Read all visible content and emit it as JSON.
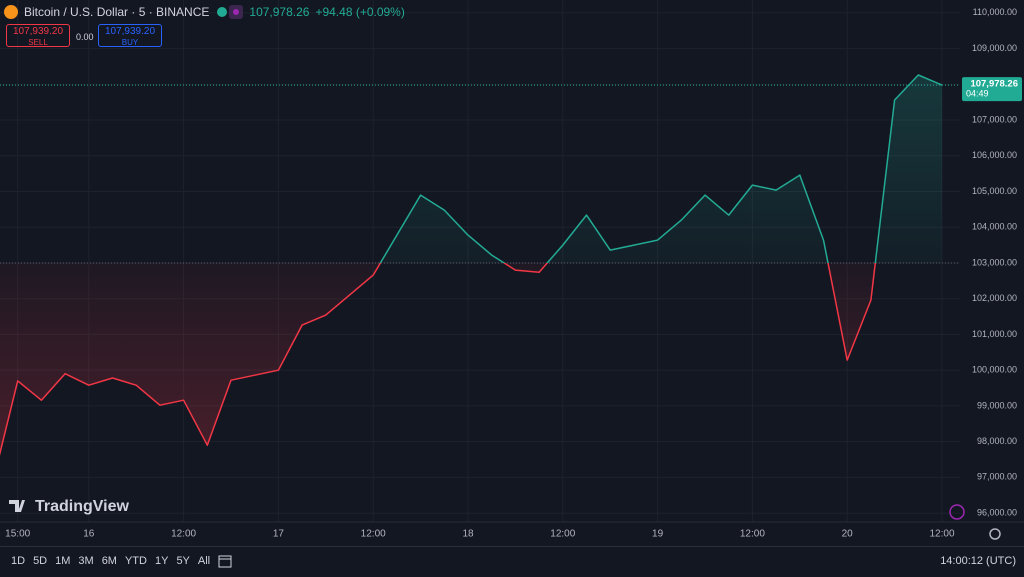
{
  "ui": {
    "symbol": "Bitcoin / U.S. Dollar · 5 · BINANCE",
    "change": "+94.48 (+0.09%)",
    "sell_price": "107,939.20",
    "sell": "SELL",
    "spread": "0.00",
    "buy_price": "107,939.20",
    "buy": "BUY",
    "logo": "TradingView",
    "ranges": [
      "1D",
      "5D",
      "1M",
      "3M",
      "6M",
      "YTD",
      "1Y",
      "5Y",
      "All"
    ],
    "clock": "14:00:12 (UTC)"
  },
  "chart_data": {
    "type": "baseline",
    "baseline": 103000,
    "colors": {
      "up": "#22ab94",
      "down": "#f23645"
    },
    "last_price": {
      "value": 107978.26,
      "label": "107,978.26"
    },
    "countdown": "04:49",
    "categories": [
      null,
      "15:00",
      null,
      null,
      "16",
      null,
      null,
      null,
      "12:00",
      null,
      null,
      null,
      "17",
      null,
      null,
      null,
      "12:00",
      null,
      null,
      null,
      "18",
      null,
      null,
      null,
      "12:00",
      null,
      null,
      null,
      "19",
      null,
      null,
      null,
      "12:00",
      null,
      null,
      null,
      "20",
      null,
      null,
      null,
      "12:00"
    ],
    "values": [
      97000,
      99700,
      99160,
      99900,
      99580,
      99780,
      99580,
      99020,
      99160,
      97900,
      99720,
      99860,
      100000,
      101260,
      101540,
      102100,
      102660,
      103780,
      104900,
      104480,
      103780,
      103220,
      102800,
      102740,
      103500,
      104340,
      103360,
      103500,
      103640,
      104200,
      104900,
      104340,
      105180,
      105040,
      105460,
      103640,
      100280,
      101960,
      107560,
      108260,
      107978.26
    ],
    "ylim": [
      95750,
      110360
    ],
    "yticks": [
      {
        "value": 96000,
        "label": "96,000.00"
      },
      {
        "value": 97000,
        "label": "97,000.00"
      },
      {
        "value": 98000,
        "label": "98,000.00"
      },
      {
        "value": 99000,
        "label": "99,000.00"
      },
      {
        "value": 100000,
        "label": "100,000.00"
      },
      {
        "value": 101000,
        "label": "101,000.00"
      },
      {
        "value": 102000,
        "label": "102,000.00"
      },
      {
        "value": 103000,
        "label": "103,000.00"
      },
      {
        "value": 104000,
        "label": "104,000.00"
      },
      {
        "value": 105000,
        "label": "105,000.00"
      },
      {
        "value": 106000,
        "label": "106,000.00"
      },
      {
        "value": 107000,
        "label": "107,000.00"
      },
      {
        "value": 108000,
        "label": "108,000.00"
      },
      {
        "value": 109000,
        "label": "109,000.00"
      },
      {
        "value": 110000,
        "label": "110,000.00"
      }
    ],
    "grid": true
  }
}
